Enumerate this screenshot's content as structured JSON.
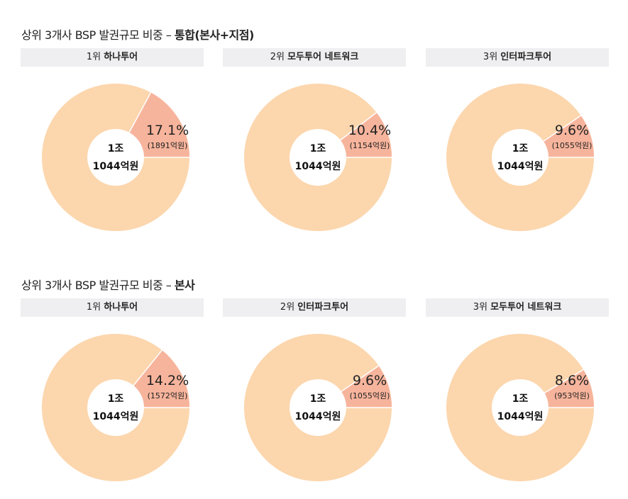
{
  "sections": [
    {
      "title_prefix": "상위 3개사 BSP 발권규모 비중 – ",
      "title_bold": "통합(본사+지점)",
      "charts": [
        {
          "rank": "1위",
          "company": "하나투어",
          "pct_label": "17.1%",
          "amount_label": "(1891억원)",
          "center_line1": "1조",
          "center_line2": "1044억원",
          "share": 0.171
        },
        {
          "rank": "2위",
          "company": "모두투어 네트워크",
          "pct_label": "10.4%",
          "amount_label": "(1154억원)",
          "center_line1": "1조",
          "center_line2": "1044억원",
          "share": 0.104
        },
        {
          "rank": "3위",
          "company": "인터파크투어",
          "pct_label": "9.6%",
          "amount_label": "(1055억원)",
          "center_line1": "1조",
          "center_line2": "1044억원",
          "share": 0.096
        }
      ]
    },
    {
      "title_prefix": "상위 3개사 BSP 발권규모 비중 – ",
      "title_bold": "본사",
      "charts": [
        {
          "rank": "1위",
          "company": "하나투어",
          "pct_label": "14.2%",
          "amount_label": "(1572억원)",
          "center_line1": "1조",
          "center_line2": "1044억원",
          "share": 0.142
        },
        {
          "rank": "2위",
          "company": "인터파크투어",
          "pct_label": "9.6%",
          "amount_label": "(1055억원)",
          "center_line1": "1조",
          "center_line2": "1044억원",
          "share": 0.096
        },
        {
          "rank": "3위",
          "company": "모두투어 네트워크",
          "pct_label": "8.6%",
          "amount_label": "(953억원)",
          "center_line1": "1조",
          "center_line2": "1044억원",
          "share": 0.086
        }
      ]
    }
  ],
  "colors": {
    "highlight": "#f7b49c",
    "remainder": "#fcd6ad",
    "hole": "#ffffff",
    "label_bg": "#efeff1"
  },
  "chart_data": [
    {
      "type": "pie",
      "title": "상위 3개사 BSP 발권규모 비중 – 통합(본사+지점)",
      "subtitle": "1위 하나투어",
      "total_label": "1조 1044억원",
      "slices": [
        {
          "label": "17.1%",
          "value": 17.1,
          "amount": "1891억원"
        },
        {
          "label": "",
          "value": 82.9
        }
      ]
    },
    {
      "type": "pie",
      "title": "상위 3개사 BSP 발권규모 비중 – 통합(본사+지점)",
      "subtitle": "2위 모두투어 네트워크",
      "total_label": "1조 1044억원",
      "slices": [
        {
          "label": "10.4%",
          "value": 10.4,
          "amount": "1154억원"
        },
        {
          "label": "",
          "value": 89.6
        }
      ]
    },
    {
      "type": "pie",
      "title": "상위 3개사 BSP 발권규모 비중 – 통합(본사+지점)",
      "subtitle": "3위 인터파크투어",
      "total_label": "1조 1044억원",
      "slices": [
        {
          "label": "9.6%",
          "value": 9.6,
          "amount": "1055억원"
        },
        {
          "label": "",
          "value": 90.4
        }
      ]
    },
    {
      "type": "pie",
      "title": "상위 3개사 BSP 발권규모 비중 – 본사",
      "subtitle": "1위 하나투어",
      "total_label": "1조 1044억원",
      "slices": [
        {
          "label": "14.2%",
          "value": 14.2,
          "amount": "1572억원"
        },
        {
          "label": "",
          "value": 85.8
        }
      ]
    },
    {
      "type": "pie",
      "title": "상위 3개사 BSP 발권규모 비중 – 본사",
      "subtitle": "2위 인터파크투어",
      "total_label": "1조 1044억원",
      "slices": [
        {
          "label": "9.6%",
          "value": 9.6,
          "amount": "1055억원"
        },
        {
          "label": "",
          "value": 90.4
        }
      ]
    },
    {
      "type": "pie",
      "title": "상위 3개사 BSP 발권규모 비중 – 본사",
      "subtitle": "3위 모두투어 네트워크",
      "total_label": "1조 1044억원",
      "slices": [
        {
          "label": "8.6%",
          "value": 8.6,
          "amount": "953억원"
        },
        {
          "label": "",
          "value": 91.4
        }
      ]
    }
  ]
}
